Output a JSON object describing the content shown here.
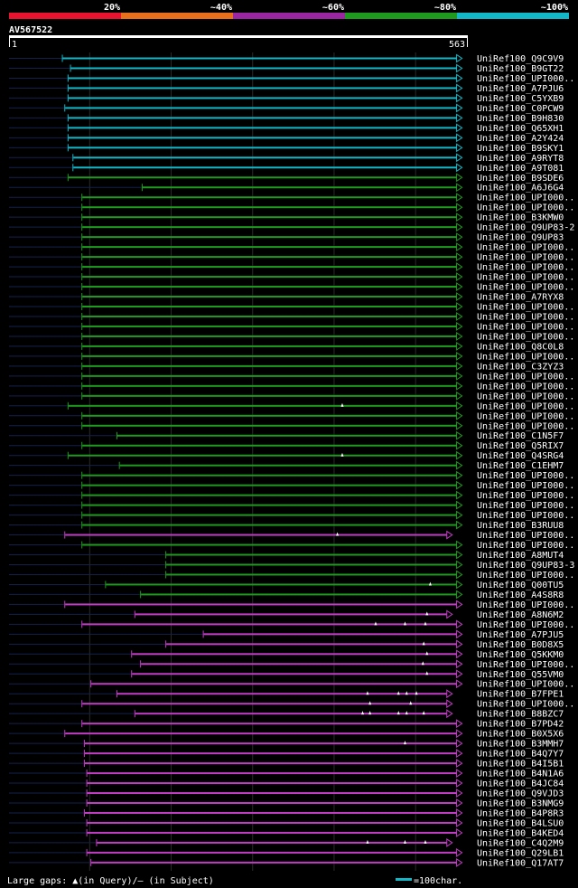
{
  "query": {
    "name": "AV567522",
    "start_label": "1",
    "end_label": "563",
    "length": 563
  },
  "identity_scale": [
    {
      "label": "20%",
      "color": "#e8132f"
    },
    {
      "label": "~40%",
      "color": "#e8701c"
    },
    {
      "label": "~60%",
      "color": "#9a27a1"
    },
    {
      "label": "~80%",
      "color": "#1e9a1e"
    },
    {
      "label": "~100%",
      "color": "#12b8c8"
    }
  ],
  "colors": {
    "cyan": "#12b8c8",
    "green": "#1e9a1e",
    "purple": "#c13cc4",
    "background": "#000000"
  },
  "legend": {
    "gaps_text": "Large gaps: ▲(in Query)/— (in Subject)",
    "scale_text": "=100char."
  },
  "chart_data": {
    "type": "alignment",
    "x_range": [
      1,
      563
    ],
    "hits": [
      {
        "name": "UniRef100_Q9C9V9",
        "start": 67,
        "end": 557,
        "color": "cyan",
        "gaps": []
      },
      {
        "name": "UniRef100_B9GT22",
        "start": 77,
        "end": 557,
        "color": "cyan",
        "gaps": []
      },
      {
        "name": "UniRef100_UPI000..",
        "start": 74,
        "end": 557,
        "color": "cyan",
        "gaps": []
      },
      {
        "name": "UniRef100_A7PJU6",
        "start": 74,
        "end": 557,
        "color": "cyan",
        "gaps": []
      },
      {
        "name": "UniRef100_C5YXB9",
        "start": 74,
        "end": 557,
        "color": "cyan",
        "gaps": []
      },
      {
        "name": "UniRef100_C0PCW9",
        "start": 70,
        "end": 557,
        "color": "cyan",
        "gaps": []
      },
      {
        "name": "UniRef100_B9H830",
        "start": 74,
        "end": 557,
        "color": "cyan",
        "gaps": []
      },
      {
        "name": "UniRef100_Q65XH1",
        "start": 74,
        "end": 557,
        "color": "cyan",
        "gaps": []
      },
      {
        "name": "UniRef100_A2Y424",
        "start": 74,
        "end": 557,
        "color": "cyan",
        "gaps": []
      },
      {
        "name": "UniRef100_B9SKY1",
        "start": 74,
        "end": 557,
        "color": "cyan",
        "gaps": []
      },
      {
        "name": "UniRef100_A9RYT8",
        "start": 80,
        "end": 557,
        "color": "cyan",
        "gaps": []
      },
      {
        "name": "UniRef100_A9T081",
        "start": 80,
        "end": 557,
        "color": "cyan",
        "gaps": []
      },
      {
        "name": "UniRef100_B9SDE6",
        "start": 74,
        "end": 557,
        "color": "green",
        "gaps": []
      },
      {
        "name": "UniRef100_A6J6G4",
        "start": 165,
        "end": 557,
        "color": "green",
        "gaps": []
      },
      {
        "name": "UniRef100_UPI000..",
        "start": 91,
        "end": 557,
        "color": "green",
        "gaps": []
      },
      {
        "name": "UniRef100_UPI000..",
        "start": 91,
        "end": 557,
        "color": "green",
        "gaps": []
      },
      {
        "name": "UniRef100_B3KMW0",
        "start": 91,
        "end": 557,
        "color": "green",
        "gaps": []
      },
      {
        "name": "UniRef100_Q9UP83-2",
        "start": 91,
        "end": 557,
        "color": "green",
        "gaps": []
      },
      {
        "name": "UniRef100_Q9UP83",
        "start": 91,
        "end": 557,
        "color": "green",
        "gaps": []
      },
      {
        "name": "UniRef100_UPI000..",
        "start": 91,
        "end": 557,
        "color": "green",
        "gaps": []
      },
      {
        "name": "UniRef100_UPI000..",
        "start": 91,
        "end": 557,
        "color": "green",
        "gaps": []
      },
      {
        "name": "UniRef100_UPI000..",
        "start": 91,
        "end": 557,
        "color": "green",
        "gaps": []
      },
      {
        "name": "UniRef100_UPI000..",
        "start": 91,
        "end": 557,
        "color": "green",
        "gaps": []
      },
      {
        "name": "UniRef100_UPI000..",
        "start": 91,
        "end": 557,
        "color": "green",
        "gaps": []
      },
      {
        "name": "UniRef100_A7RYX8",
        "start": 91,
        "end": 557,
        "color": "green",
        "gaps": []
      },
      {
        "name": "UniRef100_UPI000..",
        "start": 91,
        "end": 557,
        "color": "green",
        "gaps": []
      },
      {
        "name": "UniRef100_UPI000..",
        "start": 91,
        "end": 557,
        "color": "green",
        "gaps": []
      },
      {
        "name": "UniRef100_UPI000..",
        "start": 91,
        "end": 557,
        "color": "green",
        "gaps": []
      },
      {
        "name": "UniRef100_UPI000..",
        "start": 91,
        "end": 557,
        "color": "green",
        "gaps": []
      },
      {
        "name": "UniRef100_Q8C0L8",
        "start": 91,
        "end": 557,
        "color": "green",
        "gaps": []
      },
      {
        "name": "UniRef100_UPI000..",
        "start": 91,
        "end": 557,
        "color": "green",
        "gaps": []
      },
      {
        "name": "UniRef100_C3ZYZ3",
        "start": 91,
        "end": 557,
        "color": "green",
        "gaps": []
      },
      {
        "name": "UniRef100_UPI000..",
        "start": 91,
        "end": 557,
        "color": "green",
        "gaps": []
      },
      {
        "name": "UniRef100_UPI000..",
        "start": 91,
        "end": 557,
        "color": "green",
        "gaps": []
      },
      {
        "name": "UniRef100_UPI000..",
        "start": 91,
        "end": 557,
        "color": "green",
        "gaps": []
      },
      {
        "name": "UniRef100_UPI000..",
        "start": 74,
        "end": 557,
        "color": "green",
        "gaps": [
          410
        ]
      },
      {
        "name": "UniRef100_UPI000..",
        "start": 91,
        "end": 557,
        "color": "green",
        "gaps": []
      },
      {
        "name": "UniRef100_UPI000..",
        "start": 91,
        "end": 557,
        "color": "green",
        "gaps": []
      },
      {
        "name": "UniRef100_C1N5F7",
        "start": 134,
        "end": 557,
        "color": "green",
        "gaps": []
      },
      {
        "name": "UniRef100_Q5RIX7",
        "start": 91,
        "end": 557,
        "color": "green",
        "gaps": []
      },
      {
        "name": "UniRef100_Q4SRG4",
        "start": 74,
        "end": 557,
        "color": "green",
        "gaps": [
          410
        ]
      },
      {
        "name": "UniRef100_C1EHM7",
        "start": 137,
        "end": 557,
        "color": "green",
        "gaps": []
      },
      {
        "name": "UniRef100_UPI000..",
        "start": 91,
        "end": 557,
        "color": "green",
        "gaps": []
      },
      {
        "name": "UniRef100_UPI000..",
        "start": 91,
        "end": 557,
        "color": "green",
        "gaps": []
      },
      {
        "name": "UniRef100_UPI000..",
        "start": 91,
        "end": 557,
        "color": "green",
        "gaps": []
      },
      {
        "name": "UniRef100_UPI000..",
        "start": 91,
        "end": 557,
        "color": "green",
        "gaps": []
      },
      {
        "name": "UniRef100_UPI000..",
        "start": 91,
        "end": 557,
        "color": "green",
        "gaps": []
      },
      {
        "name": "UniRef100_B3RUU8",
        "start": 91,
        "end": 557,
        "color": "green",
        "gaps": []
      },
      {
        "name": "UniRef100_UPI000..",
        "start": 70,
        "end": 545,
        "color": "purple",
        "gaps": [
          404
        ]
      },
      {
        "name": "UniRef100_UPI000..",
        "start": 91,
        "end": 557,
        "color": "green",
        "gaps": []
      },
      {
        "name": "UniRef100_A8MUT4",
        "start": 194,
        "end": 557,
        "color": "green",
        "gaps": []
      },
      {
        "name": "UniRef100_Q9UP83-3",
        "start": 194,
        "end": 557,
        "color": "green",
        "gaps": []
      },
      {
        "name": "UniRef100_UPI000..",
        "start": 194,
        "end": 557,
        "color": "green",
        "gaps": []
      },
      {
        "name": "UniRef100_Q00TU5",
        "start": 120,
        "end": 557,
        "color": "green",
        "gaps": [
          518
        ]
      },
      {
        "name": "UniRef100_A4S8R8",
        "start": 163,
        "end": 557,
        "color": "green",
        "gaps": []
      },
      {
        "name": "UniRef100_UPI000..",
        "start": 70,
        "end": 557,
        "color": "purple",
        "gaps": []
      },
      {
        "name": "UniRef100_A8N6M2",
        "start": 156,
        "end": 545,
        "color": "purple",
        "gaps": [
          514
        ]
      },
      {
        "name": "UniRef100_UPI000..",
        "start": 91,
        "end": 557,
        "color": "purple",
        "gaps": [
          451,
          487,
          512
        ]
      },
      {
        "name": "UniRef100_A7PJU5",
        "start": 240,
        "end": 557,
        "color": "purple",
        "gaps": []
      },
      {
        "name": "UniRef100_B0D8X5",
        "start": 194,
        "end": 557,
        "color": "purple",
        "gaps": [
          510
        ]
      },
      {
        "name": "UniRef100_Q5KKM0",
        "start": 152,
        "end": 557,
        "color": "purple",
        "gaps": [
          514
        ]
      },
      {
        "name": "UniRef100_UPI000..",
        "start": 163,
        "end": 557,
        "color": "purple",
        "gaps": [
          509
        ]
      },
      {
        "name": "UniRef100_Q55VM0",
        "start": 152,
        "end": 557,
        "color": "purple",
        "gaps": [
          514
        ]
      },
      {
        "name": "UniRef100_UPI000..",
        "start": 102,
        "end": 557,
        "color": "purple",
        "gaps": []
      },
      {
        "name": "UniRef100_B7FPE1",
        "start": 134,
        "end": 545,
        "color": "purple",
        "gaps": [
          441,
          479,
          489,
          501
        ]
      },
      {
        "name": "UniRef100_UPI000..",
        "start": 91,
        "end": 545,
        "color": "purple",
        "gaps": [
          444,
          494
        ]
      },
      {
        "name": "UniRef100_B8BZC7",
        "start": 156,
        "end": 545,
        "color": "purple",
        "gaps": [
          435,
          444,
          479,
          489,
          510
        ]
      },
      {
        "name": "UniRef100_B7PD42",
        "start": 91,
        "end": 557,
        "color": "purple",
        "gaps": []
      },
      {
        "name": "UniRef100_B0X5X6",
        "start": 70,
        "end": 557,
        "color": "purple",
        "gaps": []
      },
      {
        "name": "UniRef100_B3MMH7",
        "start": 94,
        "end": 557,
        "color": "purple",
        "gaps": [
          487
        ]
      },
      {
        "name": "UniRef100_B4Q7Y7",
        "start": 94,
        "end": 557,
        "color": "purple",
        "gaps": []
      },
      {
        "name": "UniRef100_B4I5B1",
        "start": 94,
        "end": 557,
        "color": "purple",
        "gaps": []
      },
      {
        "name": "UniRef100_B4N1A6",
        "start": 97,
        "end": 557,
        "color": "purple",
        "gaps": []
      },
      {
        "name": "UniRef100_B4JC84",
        "start": 97,
        "end": 557,
        "color": "purple",
        "gaps": []
      },
      {
        "name": "UniRef100_Q9VJD3",
        "start": 97,
        "end": 557,
        "color": "purple",
        "gaps": []
      },
      {
        "name": "UniRef100_B3NMG9",
        "start": 97,
        "end": 557,
        "color": "purple",
        "gaps": []
      },
      {
        "name": "UniRef100_B4P8R3",
        "start": 94,
        "end": 557,
        "color": "purple",
        "gaps": []
      },
      {
        "name": "UniRef100_B4LSU0",
        "start": 97,
        "end": 557,
        "color": "purple",
        "gaps": []
      },
      {
        "name": "UniRef100_B4KED4",
        "start": 97,
        "end": 557,
        "color": "purple",
        "gaps": []
      },
      {
        "name": "UniRef100_C4Q2M9",
        "start": 109,
        "end": 545,
        "color": "purple",
        "gaps": [
          441,
          487,
          512
        ]
      },
      {
        "name": "UniRef100_Q29LB1",
        "start": 97,
        "end": 557,
        "color": "purple",
        "gaps": []
      },
      {
        "name": "UniRef100_Q17AT7",
        "start": 102,
        "end": 557,
        "color": "purple",
        "gaps": []
      }
    ]
  }
}
